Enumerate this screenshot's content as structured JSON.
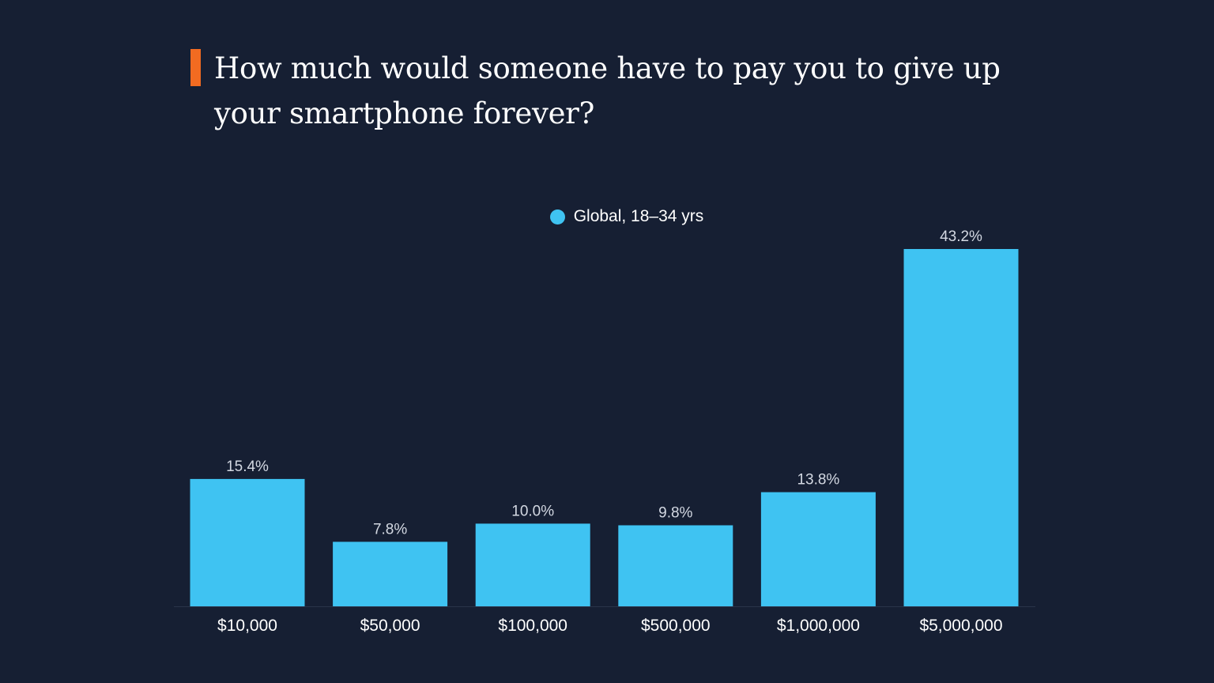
{
  "title": "How much would someone have to pay you to give up your smartphone forever?",
  "colors": {
    "background": "#161f33",
    "accent": "#f26b21",
    "bar": "#3fc3f2",
    "baseline": "#2a3449"
  },
  "chart_data": {
    "type": "bar",
    "title": "How much would someone have to pay you to give up your smartphone forever?",
    "categories": [
      "$10,000",
      "$50,000",
      "$100,000",
      "$500,000",
      "$1,000,000",
      "$5,000,000"
    ],
    "series": [
      {
        "name": "Global, 18–34 yrs",
        "values": [
          15.4,
          7.8,
          10.0,
          9.8,
          13.8,
          43.2
        ],
        "labels": [
          "15.4%",
          "7.8%",
          "10.0%",
          "9.8%",
          "13.8%",
          "43.2%"
        ]
      }
    ],
    "xlabel": "",
    "ylabel": "",
    "ylim": [
      0,
      43.2
    ],
    "grid": false,
    "legend_position": "top-center"
  }
}
